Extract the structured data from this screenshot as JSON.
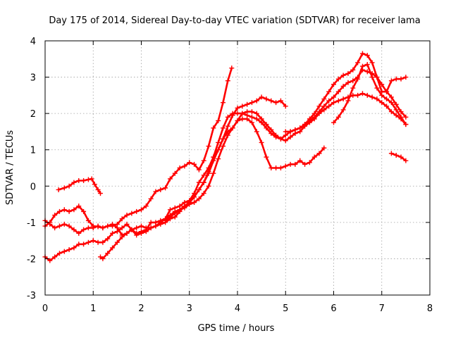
{
  "chart_data": {
    "type": "line",
    "title": "Day 175 of 2014, Sidereal Day-to-day VTEC variation (SDTVAR) for receiver lama",
    "xlabel": "GPS time / hours",
    "ylabel": "SDTVAR / TECUs",
    "xlim": [
      0,
      8
    ],
    "ylim": [
      -3,
      4
    ],
    "xticks": [
      "0",
      "1",
      "2",
      "3",
      "4",
      "5",
      "6",
      "7",
      "8"
    ],
    "yticks": [
      "-3",
      "-2",
      "-1",
      "0",
      "1",
      "2",
      "3",
      "4"
    ],
    "grid": true,
    "marker": "plus",
    "color": "#ff0000",
    "series": [
      {
        "x": [
          0.28,
          0.4,
          0.5,
          0.6,
          0.7,
          0.8,
          0.9,
          0.97,
          1.03,
          1.1,
          1.15
        ],
        "y": [
          -0.1,
          -0.05,
          0.0,
          0.1,
          0.15,
          0.15,
          0.18,
          0.2,
          0.05,
          -0.1,
          -0.2
        ]
      },
      {
        "x": [
          0.0,
          0.1,
          0.2,
          0.3,
          0.4,
          0.5,
          0.6,
          0.7,
          0.8,
          0.9,
          1.0,
          1.1,
          1.2,
          1.3,
          1.4,
          1.5,
          1.6,
          1.7,
          1.8,
          1.9,
          2.0,
          2.1,
          2.2,
          2.3,
          2.4,
          2.5,
          2.6,
          2.7,
          2.8,
          2.9,
          3.0,
          3.1,
          3.2,
          3.3,
          3.4,
          3.5,
          3.6,
          3.7,
          3.8,
          3.88
        ],
        "y": [
          -1.1,
          -1.0,
          -0.8,
          -0.7,
          -0.65,
          -0.7,
          -0.65,
          -0.55,
          -0.7,
          -0.95,
          -1.1,
          -1.12,
          -1.15,
          -1.1,
          -1.1,
          -1.05,
          -0.9,
          -0.8,
          -0.75,
          -0.7,
          -0.65,
          -0.55,
          -0.35,
          -0.15,
          -0.1,
          -0.05,
          0.2,
          0.35,
          0.5,
          0.55,
          0.65,
          0.6,
          0.45,
          0.7,
          1.1,
          1.6,
          1.8,
          2.3,
          2.9,
          3.25
        ]
      },
      {
        "x": [
          0.0,
          0.1,
          0.2,
          0.3,
          0.4,
          0.5,
          0.6,
          0.7,
          0.8,
          0.9,
          1.0,
          1.1,
          1.2,
          1.3,
          1.4,
          1.5,
          1.6,
          1.7,
          1.8,
          1.9,
          2.0,
          2.1,
          2.2,
          2.3,
          2.4,
          2.5,
          2.6,
          2.7,
          2.8,
          2.9,
          3.0,
          3.1,
          3.2,
          3.3,
          3.4,
          3.5,
          3.6,
          3.7,
          3.8,
          3.9,
          4.0,
          4.1,
          4.2,
          4.3,
          4.4,
          4.5,
          4.6,
          4.7,
          4.8,
          4.9,
          5.0,
          5.1,
          5.2,
          5.3,
          5.4,
          5.5,
          5.6,
          5.7,
          5.8
        ],
        "y": [
          -0.95,
          -1.05,
          -1.15,
          -1.1,
          -1.05,
          -1.1,
          -1.2,
          -1.3,
          -1.2,
          -1.15,
          -1.15,
          -1.1,
          -1.15,
          -1.1,
          -1.05,
          -1.15,
          -1.35,
          -1.3,
          -1.2,
          -1.3,
          -1.25,
          -1.2,
          -1.0,
          -1.0,
          -0.95,
          -0.9,
          -0.65,
          -0.6,
          -0.55,
          -0.45,
          -0.4,
          -0.2,
          0.1,
          0.3,
          0.5,
          0.8,
          1.0,
          1.3,
          1.5,
          1.6,
          1.8,
          1.85,
          1.85,
          1.75,
          1.5,
          1.2,
          0.8,
          0.5,
          0.5,
          0.5,
          0.55,
          0.6,
          0.6,
          0.7,
          0.6,
          0.65,
          0.8,
          0.9,
          1.05
        ]
      },
      {
        "x": [
          0.0,
          0.1,
          0.2,
          0.3,
          0.4,
          0.5,
          0.6,
          0.7,
          0.8,
          0.9,
          1.0,
          1.1,
          1.2,
          1.3,
          1.4,
          1.5,
          1.6,
          1.7,
          1.8,
          1.9,
          2.0,
          2.1,
          2.2,
          2.3,
          2.4,
          2.5,
          2.6,
          2.7,
          2.8,
          2.9,
          3.0,
          3.1,
          3.2,
          3.3,
          3.4,
          3.5,
          3.6,
          3.7,
          3.8,
          3.9,
          4.0,
          4.1,
          4.2,
          4.3,
          4.4,
          4.5,
          4.6,
          4.7,
          4.8,
          4.9,
          5.0,
          5.1,
          5.2,
          5.3,
          5.4,
          5.5,
          5.6,
          5.7,
          5.8,
          5.9,
          6.0,
          6.1,
          6.2,
          6.3,
          6.4,
          6.5,
          6.6,
          6.7,
          6.8,
          6.9,
          7.0,
          7.1,
          7.2,
          7.3,
          7.4,
          7.5
        ],
        "y": [
          -1.95,
          -2.05,
          -1.95,
          -1.85,
          -1.8,
          -1.75,
          -1.7,
          -1.6,
          -1.6,
          -1.55,
          -1.5,
          -1.55,
          -1.55,
          -1.45,
          -1.3,
          -1.25,
          -1.15,
          -1.05,
          -1.2,
          -1.35,
          -1.3,
          -1.25,
          -1.15,
          -1.1,
          -1.05,
          -1.0,
          -0.9,
          -0.85,
          -0.7,
          -0.55,
          -0.45,
          -0.3,
          -0.1,
          0.1,
          0.4,
          0.8,
          1.2,
          1.6,
          1.9,
          2.0,
          2.0,
          2.0,
          1.95,
          1.9,
          1.85,
          1.75,
          1.6,
          1.45,
          1.35,
          1.3,
          1.25,
          1.35,
          1.45,
          1.5,
          1.65,
          1.75,
          1.85,
          2.0,
          2.1,
          2.2,
          2.3,
          2.35,
          2.4,
          2.45,
          2.5,
          2.5,
          2.55,
          2.5,
          2.45,
          2.4,
          2.3,
          2.2,
          2.05,
          1.95,
          1.85,
          1.7
        ]
      },
      {
        "x": [
          1.15,
          1.2,
          1.3,
          1.4,
          1.5,
          1.6,
          1.7,
          1.8,
          1.9,
          2.0,
          2.1,
          2.2,
          2.3,
          2.4,
          2.5,
          2.6,
          2.7,
          2.8,
          2.9,
          3.0,
          3.1,
          3.2,
          3.3,
          3.4,
          3.5,
          3.6,
          3.7,
          3.8,
          3.9,
          4.0,
          4.1,
          4.2,
          4.3,
          4.4,
          4.5,
          4.6,
          4.7,
          4.8,
          4.9,
          5.0,
          5.1,
          5.2,
          5.3,
          5.4,
          5.5,
          5.6,
          5.7,
          5.8,
          5.9,
          6.0,
          6.1,
          6.2,
          6.3,
          6.4,
          6.5,
          6.6,
          6.7,
          6.8,
          6.9,
          7.0,
          7.1,
          7.2,
          7.3,
          7.4,
          7.5
        ],
        "y": [
          -1.95,
          -2.0,
          -1.85,
          -1.7,
          -1.55,
          -1.4,
          -1.3,
          -1.2,
          -1.15,
          -1.1,
          -1.15,
          -1.15,
          -1.1,
          -1.0,
          -0.9,
          -0.8,
          -0.7,
          -0.65,
          -0.6,
          -0.5,
          -0.45,
          -0.35,
          -0.2,
          0.0,
          0.35,
          0.75,
          1.1,
          1.4,
          1.6,
          1.8,
          2.0,
          2.05,
          2.05,
          2.0,
          1.85,
          1.7,
          1.55,
          1.4,
          1.3,
          1.4,
          1.5,
          1.55,
          1.6,
          1.7,
          1.8,
          1.9,
          2.05,
          2.2,
          2.35,
          2.45,
          2.6,
          2.75,
          2.85,
          2.9,
          3.0,
          3.2,
          3.15,
          3.1,
          3.0,
          2.8,
          2.6,
          2.45,
          2.25,
          2.05,
          1.9
        ]
      },
      {
        "x": [
          2.5,
          2.6,
          2.7,
          2.8,
          2.9,
          3.0,
          3.1,
          3.2,
          3.3,
          3.4,
          3.5,
          3.6,
          3.7,
          3.8,
          3.9,
          4.0,
          4.1,
          4.2,
          4.3,
          4.4,
          4.5,
          4.6,
          4.7,
          4.8,
          4.9,
          5.0
        ],
        "y": [
          -0.95,
          -0.85,
          -0.75,
          -0.65,
          -0.55,
          -0.45,
          -0.3,
          -0.1,
          0.1,
          0.35,
          0.7,
          1.0,
          1.3,
          1.65,
          1.95,
          2.15,
          2.2,
          2.25,
          2.3,
          2.35,
          2.45,
          2.4,
          2.35,
          2.3,
          2.35,
          2.2
        ]
      },
      {
        "x": [
          5.0,
          5.1,
          5.2,
          5.3,
          5.4,
          5.5,
          5.6,
          5.7,
          5.8,
          5.9,
          6.0,
          6.1,
          6.2,
          6.3,
          6.4,
          6.5,
          6.6,
          6.7,
          6.8,
          6.9,
          7.0,
          7.1,
          7.2,
          7.3,
          7.4,
          7.5
        ],
        "y": [
          1.5,
          1.5,
          1.55,
          1.6,
          1.7,
          1.85,
          2.0,
          2.2,
          2.4,
          2.6,
          2.8,
          2.95,
          3.05,
          3.1,
          3.2,
          3.4,
          3.65,
          3.6,
          3.4,
          3.0,
          2.6,
          2.6,
          2.9,
          2.95,
          2.95,
          3.0
        ]
      },
      {
        "x": [
          6.0,
          6.1,
          6.2,
          6.3,
          6.4,
          6.5,
          6.6,
          6.7,
          6.8,
          6.9,
          7.0,
          7.1,
          7.2,
          7.3,
          7.4,
          7.5
        ],
        "y": [
          1.75,
          1.9,
          2.1,
          2.35,
          2.7,
          2.95,
          3.3,
          3.35,
          3.0,
          2.7,
          2.5,
          2.4,
          2.3,
          2.1,
          1.9,
          1.7
        ]
      },
      {
        "x": [
          7.2,
          7.3,
          7.4,
          7.5
        ],
        "y": [
          0.9,
          0.85,
          0.8,
          0.7
        ]
      }
    ]
  }
}
